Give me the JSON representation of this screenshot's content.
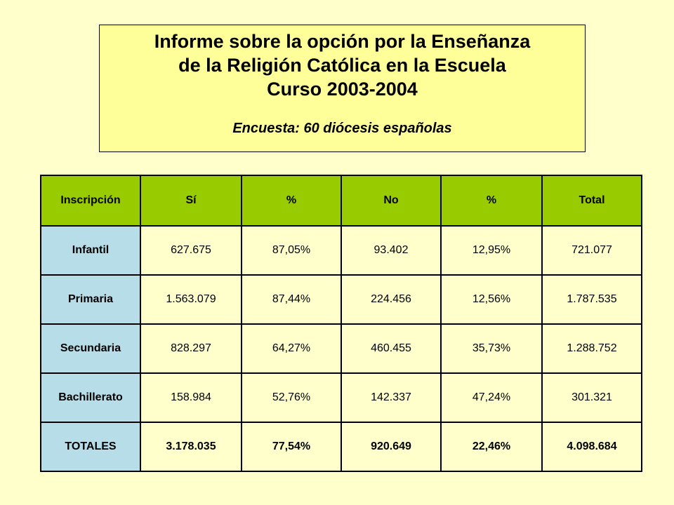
{
  "header": {
    "title_line1": "Informe sobre la opción por la Enseñanza",
    "title_line2": "de la Religión Católica en la Escuela",
    "title_line3": "Curso 2003-2004",
    "subtitle": "Encuesta: 60 diócesis españolas"
  },
  "table": {
    "columns": [
      "Inscripción",
      "Sí",
      "%",
      "No",
      "%",
      "Total"
    ],
    "rows": [
      [
        "Infantil",
        "627.675",
        "87,05%",
        "93.402",
        "12,95%",
        "721.077"
      ],
      [
        "Primaria",
        "1.563.079",
        "87,44%",
        "224.456",
        "12,56%",
        "1.787.535"
      ],
      [
        "Secundaria",
        "828.297",
        "64,27%",
        "460.455",
        "35,73%",
        "1.288.752"
      ],
      [
        "Bachillerato",
        "158.984",
        "52,76%",
        "142.337",
        "47,24%",
        "301.321"
      ]
    ],
    "totals": [
      "TOTALES",
      "3.178.035",
      "77,54%",
      "920.649",
      "22,46%",
      "4.098.684"
    ]
  },
  "colors": {
    "background": "#FFFFCC",
    "title_box": "#FFFF99",
    "header_row": "#99CC00",
    "row_header": "#B7DDE8"
  }
}
